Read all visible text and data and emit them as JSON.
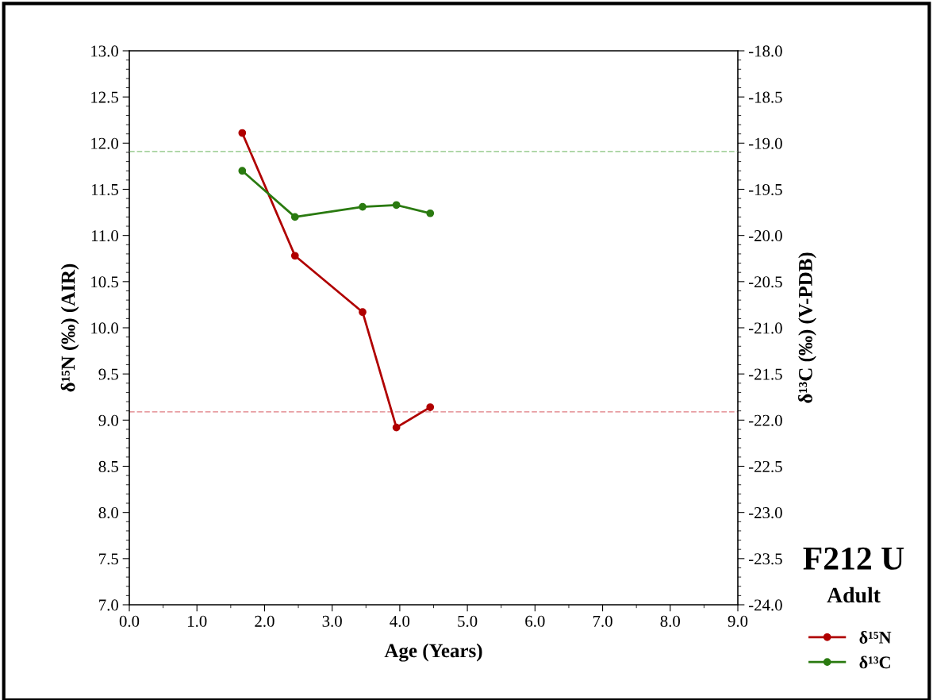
{
  "chart_data": {
    "type": "line",
    "xlabel": "Age (Years)",
    "ylabel": "δ¹⁵N (‰) (AIR)",
    "y2label": "δ¹³C (‰) (V-PDB)",
    "series": [
      {
        "name": "δ¹⁵N",
        "color": "#b00000",
        "x": [
          1.67,
          2.45,
          3.45,
          3.95,
          4.45
        ],
        "values": [
          12.11,
          10.78,
          10.17,
          8.92,
          9.14
        ]
      },
      {
        "name": "δ¹³C",
        "color": "#2a7a10",
        "axis": "y2",
        "x": [
          1.67,
          2.45,
          3.45,
          3.95,
          4.45
        ],
        "values": [
          -19.3,
          -19.8,
          -19.69,
          -19.67,
          -19.76
        ]
      }
    ],
    "xlim": [
      0,
      9
    ],
    "ylim": [
      7,
      13
    ],
    "y2lim": [
      -24,
      -18
    ],
    "xticks": [
      {
        "value": 0,
        "label": "0.0"
      },
      {
        "value": 1,
        "label": "1.0"
      },
      {
        "value": 2,
        "label": "2.0"
      },
      {
        "value": 3,
        "label": "3.0"
      },
      {
        "value": 4,
        "label": "4.0"
      },
      {
        "value": 5,
        "label": "5.0"
      },
      {
        "value": 6,
        "label": "6.0"
      },
      {
        "value": 7,
        "label": "7.0"
      },
      {
        "value": 8,
        "label": "8.0"
      },
      {
        "value": 9,
        "label": "9.0"
      }
    ],
    "yticks": [
      {
        "value": 7,
        "label": "7.0"
      },
      {
        "value": 7.5,
        "label": "7.5"
      },
      {
        "value": 8,
        "label": "8.0"
      },
      {
        "value": 8.5,
        "label": "8.5"
      },
      {
        "value": 9,
        "label": "9.0"
      },
      {
        "value": 9.5,
        "label": "9.5"
      },
      {
        "value": 10,
        "label": "10.0"
      },
      {
        "value": 10.5,
        "label": "10.5"
      },
      {
        "value": 11,
        "label": "11.0"
      },
      {
        "value": 11.5,
        "label": "11.5"
      },
      {
        "value": 12,
        "label": "12.0"
      },
      {
        "value": 12.5,
        "label": "12.5"
      },
      {
        "value": 13,
        "label": "13.0"
      }
    ],
    "y2ticks": [
      {
        "value": -24,
        "label": "-24.0"
      },
      {
        "value": -23.5,
        "label": "-23.5"
      },
      {
        "value": -23,
        "label": "-23.0"
      },
      {
        "value": -22.5,
        "label": "-22.5"
      },
      {
        "value": -22,
        "label": "-22.0"
      },
      {
        "value": -21.5,
        "label": "-21.5"
      },
      {
        "value": -21,
        "label": "-21.0"
      },
      {
        "value": -20.5,
        "label": "-20.5"
      },
      {
        "value": -20,
        "label": "-20.0"
      },
      {
        "value": -19.5,
        "label": "-19.5"
      },
      {
        "value": -19,
        "label": "-19.0"
      },
      {
        "value": -18.5,
        "label": "-18.5"
      },
      {
        "value": -18,
        "label": "-18.0"
      }
    ],
    "ref_lines": [
      {
        "axis": "y2",
        "value": -19.09,
        "color": "#a8d3a0",
        "line_style": "dashed"
      },
      {
        "axis": "y",
        "value": 9.09,
        "color": "#e8a0a4",
        "line_style": "dashed"
      }
    ],
    "annotations": [
      "F212 U",
      "Adult"
    ],
    "marker": "circle",
    "line_style": "solid",
    "grid": false,
    "legend": "bottom right"
  }
}
